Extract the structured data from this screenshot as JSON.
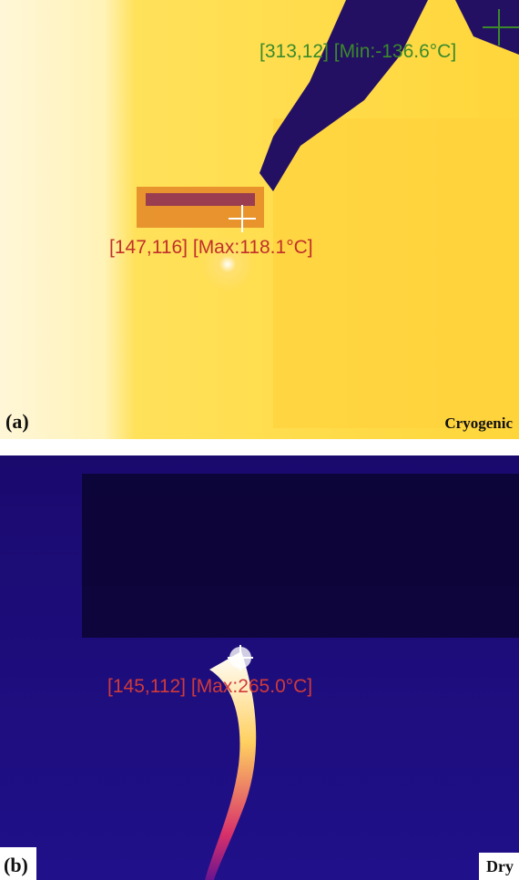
{
  "panels": [
    {
      "label": "(a)",
      "condition": "Cryogenic",
      "annotations": [
        "[313,12] [Min:-136.6°C]",
        "[147,116] [Max:118.1°C]"
      ]
    },
    {
      "label": "(b)",
      "condition": "Dry",
      "annotations": [
        "[145,112] [Max:265.0°C]"
      ]
    }
  ]
}
